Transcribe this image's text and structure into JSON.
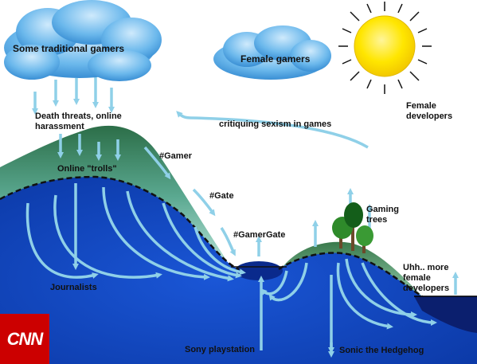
{
  "labels": {
    "traditional_gamers": "Some traditional gamers",
    "female_gamers": "Female gamers",
    "female_developers": "Female\ndevelopers",
    "death_threats": "Death threats, online\nharassment",
    "critiquing": "critiquing sexism in games",
    "trolls": "Online \"trolls\"",
    "gamer": "#Gamer",
    "gate": "#Gate",
    "gamergate": "#GamerGate",
    "gaming_trees": "Gaming\ntrees",
    "journalists": "Journalists",
    "more_female_devs": "Uhh.. more\nfemale\ndevelopers",
    "sony": "Sony playstation",
    "sonic": "Sonic the Hedgehog"
  },
  "logo": {
    "text": "CNN",
    "color": "#cc0000"
  },
  "colors": {
    "sky": "#ffffff",
    "water_deep": "#0a3fb8",
    "water_mid": "#1e5ed6",
    "hill_dark": "#2f7a4a",
    "hill_light": "#a8d8c9",
    "arrow": "#8fd0e8",
    "cloud": "#4aa4e0",
    "sun": "#ffe000"
  }
}
